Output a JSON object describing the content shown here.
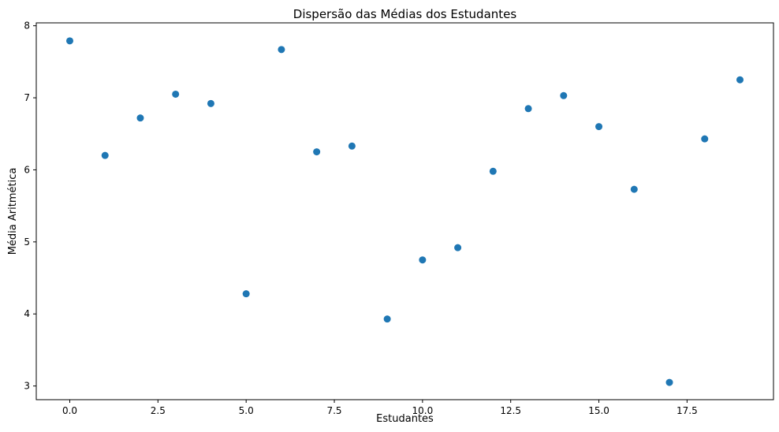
{
  "chart_data": {
    "type": "scatter",
    "title": "Dispersão das Médias dos Estudantes",
    "xlabel": "Estudantes",
    "ylabel": "Média Aritmética",
    "xlim": [
      -0.95,
      19.95
    ],
    "ylim": [
      2.81,
      8.04
    ],
    "xticks": [
      0.0,
      2.5,
      5.0,
      7.5,
      10.0,
      12.5,
      15.0,
      17.5
    ],
    "xtick_labels": [
      "0.0",
      "2.5",
      "5.0",
      "7.5",
      "10.0",
      "12.5",
      "15.0",
      "17.5"
    ],
    "yticks": [
      3,
      4,
      5,
      6,
      7,
      8
    ],
    "ytick_labels": [
      "3",
      "4",
      "5",
      "6",
      "7",
      "8"
    ],
    "grid": false,
    "marker_color": "#1f77b4",
    "series": [
      {
        "x": [
          0,
          1,
          2,
          3,
          4,
          5,
          6,
          7,
          8,
          9,
          10,
          11,
          12,
          13,
          14,
          15,
          16,
          17,
          18,
          19
        ],
        "y": [
          7.79,
          6.2,
          6.72,
          7.05,
          6.92,
          4.28,
          7.67,
          6.25,
          6.33,
          3.93,
          4.75,
          4.92,
          5.98,
          6.85,
          7.03,
          6.6,
          5.73,
          3.05,
          6.43,
          7.25
        ]
      }
    ]
  }
}
